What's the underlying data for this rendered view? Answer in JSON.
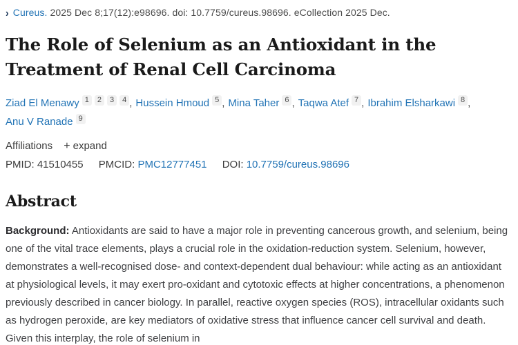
{
  "citation": {
    "journal": "Cureus.",
    "details": "2025 Dec 8;17(12):e98696. doi: 10.7759/cureus.98696. eCollection 2025 Dec."
  },
  "title": "The Role of Selenium as an Antioxidant in the Treatment of Renal Cell Carcinoma",
  "authors": [
    {
      "name": "Ziad El Menawy",
      "affiliations": [
        "1",
        "2",
        "3",
        "4"
      ]
    },
    {
      "name": "Hussein Hmoud",
      "affiliations": [
        "5"
      ]
    },
    {
      "name": "Mina Taher",
      "affiliations": [
        "6"
      ]
    },
    {
      "name": "Taqwa Atef",
      "affiliations": [
        "7"
      ]
    },
    {
      "name": "Ibrahim Elsharkawi",
      "affiliations": [
        "8"
      ]
    },
    {
      "name": "Anu V Ranade",
      "affiliations": [
        "9"
      ]
    }
  ],
  "affiliations": {
    "label": "Affiliations",
    "expand_label": "expand",
    "plus_glyph": "+"
  },
  "ids": {
    "pmid_label": "PMID:",
    "pmid_value": "41510455",
    "pmcid_label": "PMCID:",
    "pmcid_value": "PMC12777451",
    "doi_label": "DOI:",
    "doi_value": "10.7759/cureus.98696"
  },
  "abstract": {
    "heading": "Abstract",
    "background_label": "Background:",
    "background_text": "Antioxidants are said to have a major role in preventing cancerous growth, and selenium, being one of the vital trace elements, plays a crucial role in the oxidation-reduction system. Selenium, however, demonstrates a well-recognised dose- and context-dependent dual behaviour: while acting as an antioxidant at physiological levels, it may exert pro-oxidant and cytotoxic effects at higher concentrations, a phenomenon previously described in cancer biology. In parallel, reactive oxygen species (ROS), intracellular oxidants such as hydrogen peroxide, are key mediators of oxidative stress that influence cancer cell survival and death. Given this interplay, the role of selenium in"
  },
  "colors": {
    "link_blue": "#2173b5",
    "chevron_navy": "#1e3a5c",
    "badge_background": "#f1f1f1",
    "heading_text": "#1a1a1a",
    "body_text": "#3f4043",
    "meta_text": "#4a4a4a"
  },
  "icons": {
    "chevron": "›"
  }
}
